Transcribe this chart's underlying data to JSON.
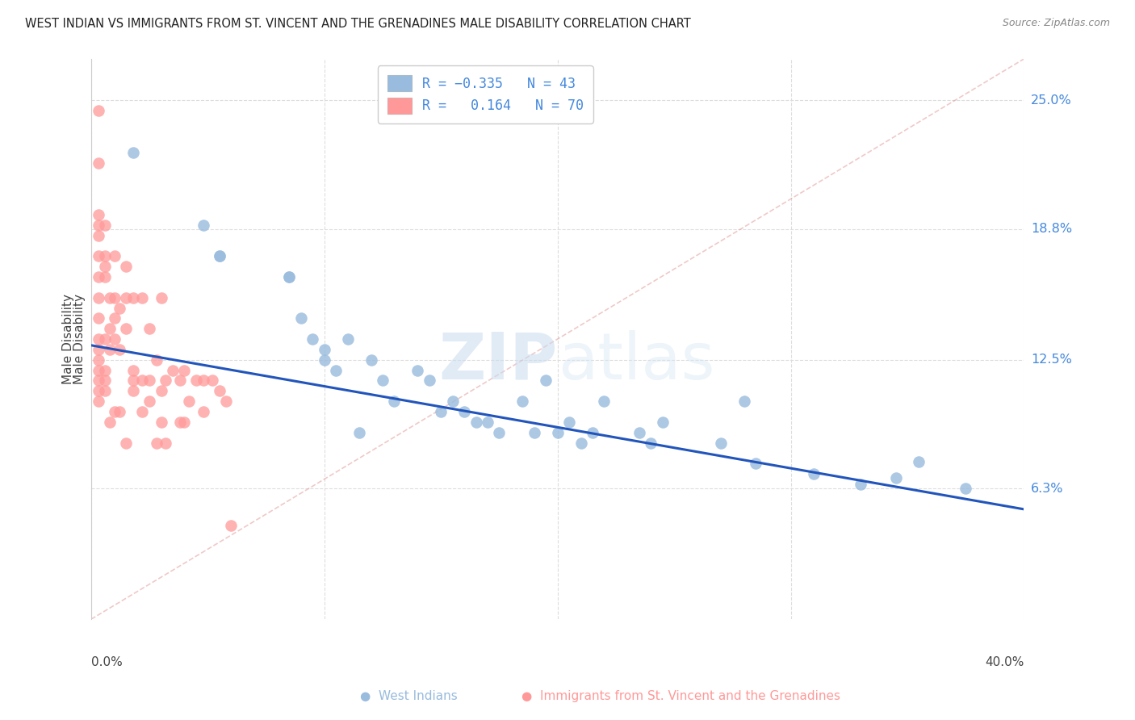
{
  "title": "WEST INDIAN VS IMMIGRANTS FROM ST. VINCENT AND THE GRENADINES MALE DISABILITY CORRELATION CHART",
  "source": "Source: ZipAtlas.com",
  "ylabel": "Male Disability",
  "xmin": 0.0,
  "xmax": 0.4,
  "ymin": 0.0,
  "ymax": 0.27,
  "ytick_vals": [
    0.063,
    0.125,
    0.188,
    0.25
  ],
  "ytick_labels": [
    "6.3%",
    "12.5%",
    "18.8%",
    "25.0%"
  ],
  "xtick_vals": [
    0.0,
    0.1,
    0.2,
    0.3,
    0.4
  ],
  "xtick_labels": [
    "0.0%",
    "",
    "",
    "",
    "40.0%"
  ],
  "blue_color": "#99BBDD",
  "pink_color": "#FF9999",
  "trend_blue_color": "#2255BB",
  "trend_pink_color": "#DD8888",
  "label_blue_color": "#4488DD",
  "label_right_color": "#4488DD",
  "watermark_color": "#CCDDEF",
  "grid_color": "#DDDDDD",
  "blue_trend_x0": 0.0,
  "blue_trend_y0": 0.132,
  "blue_trend_x1": 0.4,
  "blue_trend_y1": 0.053,
  "pink_trend_x0": 0.0,
  "pink_trend_y0": 0.0,
  "pink_trend_x1": 0.4,
  "pink_trend_y1": 0.27,
  "blue_scatter_x": [
    0.018,
    0.048,
    0.055,
    0.055,
    0.085,
    0.085,
    0.09,
    0.095,
    0.1,
    0.1,
    0.105,
    0.11,
    0.115,
    0.12,
    0.125,
    0.13,
    0.14,
    0.145,
    0.15,
    0.155,
    0.16,
    0.165,
    0.17,
    0.175,
    0.185,
    0.19,
    0.195,
    0.2,
    0.205,
    0.21,
    0.215,
    0.22,
    0.235,
    0.24,
    0.245,
    0.27,
    0.28,
    0.285,
    0.31,
    0.33,
    0.345,
    0.355,
    0.375
  ],
  "blue_scatter_y": [
    0.225,
    0.19,
    0.175,
    0.175,
    0.165,
    0.165,
    0.145,
    0.135,
    0.13,
    0.125,
    0.12,
    0.135,
    0.09,
    0.125,
    0.115,
    0.105,
    0.12,
    0.115,
    0.1,
    0.105,
    0.1,
    0.095,
    0.095,
    0.09,
    0.105,
    0.09,
    0.115,
    0.09,
    0.095,
    0.085,
    0.09,
    0.105,
    0.09,
    0.085,
    0.095,
    0.085,
    0.105,
    0.075,
    0.07,
    0.065,
    0.068,
    0.076,
    0.063
  ],
  "pink_scatter_x": [
    0.003,
    0.003,
    0.003,
    0.003,
    0.003,
    0.003,
    0.003,
    0.003,
    0.003,
    0.003,
    0.003,
    0.003,
    0.003,
    0.003,
    0.003,
    0.003,
    0.006,
    0.006,
    0.006,
    0.006,
    0.006,
    0.006,
    0.006,
    0.006,
    0.008,
    0.008,
    0.008,
    0.008,
    0.01,
    0.01,
    0.01,
    0.01,
    0.01,
    0.012,
    0.012,
    0.012,
    0.015,
    0.015,
    0.015,
    0.015,
    0.018,
    0.018,
    0.018,
    0.018,
    0.022,
    0.022,
    0.022,
    0.025,
    0.025,
    0.025,
    0.028,
    0.028,
    0.03,
    0.03,
    0.03,
    0.032,
    0.032,
    0.035,
    0.038,
    0.038,
    0.04,
    0.04,
    0.042,
    0.045,
    0.048,
    0.048,
    0.052,
    0.055,
    0.058,
    0.06
  ],
  "pink_scatter_y": [
    0.245,
    0.22,
    0.195,
    0.19,
    0.185,
    0.175,
    0.165,
    0.155,
    0.145,
    0.135,
    0.13,
    0.125,
    0.12,
    0.115,
    0.11,
    0.105,
    0.19,
    0.175,
    0.17,
    0.165,
    0.135,
    0.12,
    0.115,
    0.11,
    0.155,
    0.14,
    0.13,
    0.095,
    0.175,
    0.155,
    0.145,
    0.135,
    0.1,
    0.15,
    0.13,
    0.1,
    0.17,
    0.155,
    0.14,
    0.085,
    0.155,
    0.12,
    0.115,
    0.11,
    0.155,
    0.115,
    0.1,
    0.14,
    0.115,
    0.105,
    0.125,
    0.085,
    0.155,
    0.11,
    0.095,
    0.115,
    0.085,
    0.12,
    0.115,
    0.095,
    0.12,
    0.095,
    0.105,
    0.115,
    0.115,
    0.1,
    0.115,
    0.11,
    0.105,
    0.045
  ]
}
